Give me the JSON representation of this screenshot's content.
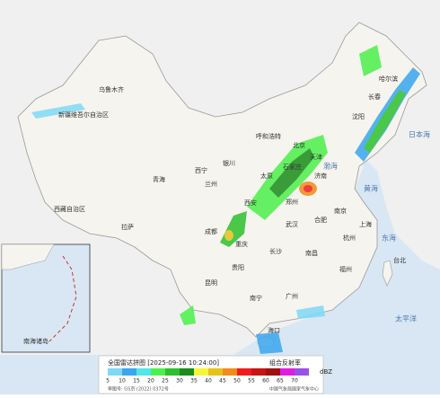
{
  "map": {
    "places": [
      "乌鲁木齐",
      "新疆维吾尔自治区",
      "西藏自治区",
      "拉萨",
      "青海",
      "西宁",
      "兰州",
      "银川",
      "呼和浩特",
      "北京",
      "天津",
      "石家庄",
      "太原",
      "济南",
      "西安",
      "郑州",
      "成都",
      "重庆",
      "贵阳",
      "昆明",
      "南宁",
      "长沙",
      "武汉",
      "南昌",
      "合肥",
      "南京",
      "上海",
      "杭州",
      "福州",
      "台北",
      "广州",
      "海口",
      "哈尔滨",
      "长春",
      "沈阳",
      "渤海",
      "黄海",
      "东海",
      "太平洋",
      "日本海"
    ],
    "inset": [
      "南海诸岛"
    ]
  },
  "legend": {
    "title": "全国雷达拼图 [2025-09-16 10:24:00]",
    "product": "组合反射率",
    "unit": "dBZ",
    "levels": [
      {
        "label": "5",
        "color": "#7fd8f5"
      },
      {
        "label": "10",
        "color": "#3aa6ee"
      },
      {
        "label": "15",
        "color": "#52e6e8"
      },
      {
        "label": "20",
        "color": "#4cf04c"
      },
      {
        "label": "25",
        "color": "#2ec02e"
      },
      {
        "label": "30",
        "color": "#1a8c1a"
      },
      {
        "label": "35",
        "color": "#f5f53a"
      },
      {
        "label": "40",
        "color": "#e6c21c"
      },
      {
        "label": "45",
        "color": "#f08c1c"
      },
      {
        "label": "50",
        "color": "#f01c1c"
      },
      {
        "label": "55",
        "color": "#c81414"
      },
      {
        "label": "60",
        "color": "#a01010"
      },
      {
        "label": "65",
        "color": "#e01ce0"
      },
      {
        "label": "70",
        "color": "#9a50e6"
      }
    ],
    "approval": "审图号: GS京 (2022) 0372号",
    "source": "中国气象局国家气象中心"
  }
}
